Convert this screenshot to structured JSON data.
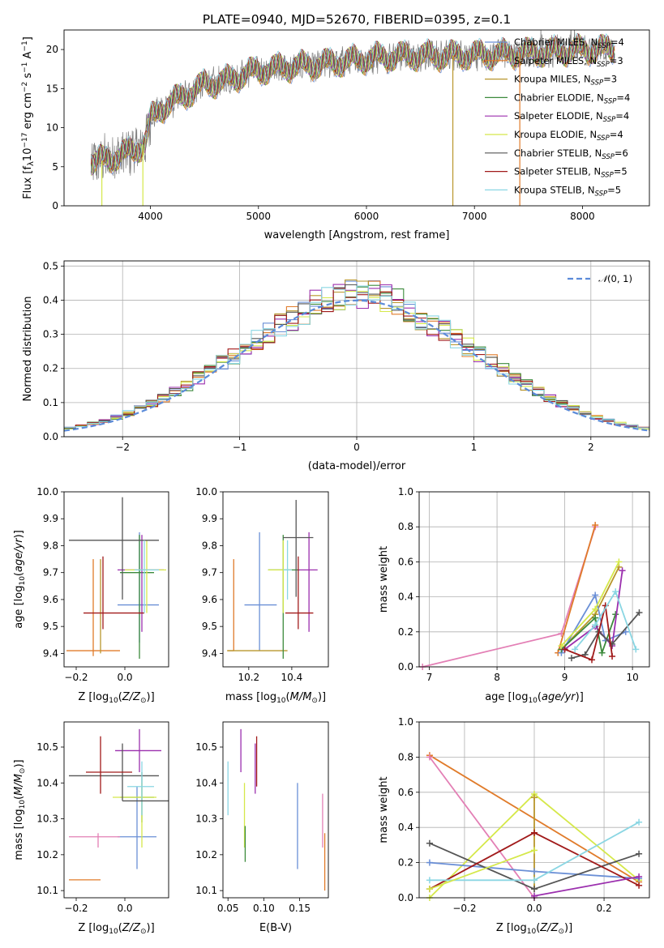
{
  "figure": {
    "title": "PLATE=0940, MJD=52670, FIBERID=0395, z=0.1"
  },
  "colors": {
    "Chabrier MILES": "#6a8fd6",
    "Salpeter MILES": "#e07b2a",
    "Kroupa MILES": "#b8962c",
    "Chabrier ELODIE": "#3c8a3c",
    "Salpeter ELODIE": "#9b2fae",
    "Kroupa ELODIE": "#d5e84a",
    "Chabrier STELIB": "#555555",
    "Salpeter STELIB": "#a11a1a",
    "Kroupa STELIB": "#8ad6e3",
    "pink": "#e37fb5",
    "gauss": "#5b8bd9",
    "spectrum": "#7f7f7f"
  },
  "chart_data": [
    {
      "id": "spectrum",
      "type": "line",
      "xlabel": "wavelength [Angstrom, rest frame]",
      "ylabel": "Flux [f_λ 10^-17 erg cm^-2 s^-1 A^-1]",
      "xlim": [
        3200,
        8620
      ],
      "ylim": [
        0,
        22.5
      ],
      "xticks": [
        4000,
        5000,
        6000,
        7000,
        8000
      ],
      "yticks": [
        0,
        5,
        10,
        15,
        20
      ],
      "legend_position": "upper right",
      "legend": [
        {
          "name": "Chabrier MILES",
          "n_ssp": "4"
        },
        {
          "name": "Salpeter MILES",
          "n_ssp": "3"
        },
        {
          "name": "Kroupa MILES",
          "n_ssp": "3"
        },
        {
          "name": "Chabrier ELODIE",
          "n_ssp": "4"
        },
        {
          "name": "Salpeter ELODIE",
          "n_ssp": "4"
        },
        {
          "name": "Kroupa ELODIE",
          "n_ssp": "4"
        },
        {
          "name": "Chabrier STELIB",
          "n_ssp": "6"
        },
        {
          "name": "Salpeter STELIB",
          "n_ssp": "5"
        },
        {
          "name": "Kroupa STELIB",
          "n_ssp": "5"
        }
      ],
      "continuum_anchors": {
        "x": [
          3450,
          3550,
          3650,
          3800,
          3950,
          4000,
          4100,
          4300,
          4500,
          4700,
          4900,
          5100,
          5300,
          5500,
          5800,
          6100,
          6400,
          6700,
          7000,
          7300,
          7500,
          7700,
          7900,
          8100,
          8300
        ],
        "y": [
          5.5,
          5.8,
          6.2,
          6.8,
          8.0,
          11.0,
          12.5,
          14.0,
          15.5,
          16.0,
          17.0,
          17.5,
          17.8,
          18.0,
          18.5,
          19.0,
          19.2,
          19.2,
          19.3,
          19.4,
          19.6,
          19.7,
          19.9,
          20.0,
          20.0
        ]
      },
      "spikes_down": [
        {
          "x": 3930,
          "y": 0
        },
        {
          "x": 3550,
          "y": 0
        },
        {
          "x": 6800,
          "y": 0
        },
        {
          "x": 7420,
          "y": 0
        }
      ]
    },
    {
      "id": "residuals",
      "type": "histogram",
      "xlabel": "(data-model)/error",
      "ylabel": "Normed distribution",
      "xlim": [
        -2.5,
        2.5
      ],
      "ylim": [
        0,
        0.515
      ],
      "xticks": [
        -2,
        -1,
        0,
        1,
        2
      ],
      "yticks": [
        0.0,
        0.1,
        0.2,
        0.3,
        0.4,
        0.5
      ],
      "grid": true,
      "reference": {
        "label": "N(0,1)",
        "mu": 0,
        "sigma": 1
      },
      "bin_edges_from": -2.5,
      "bin_width": 0.1
    },
    {
      "id": "age_vs_Z",
      "type": "errorbar",
      "xlabel": "Z [log10(Z/Z_sun)]",
      "ylabel": "age [log10(age/yr)]",
      "xlim": [
        -0.25,
        0.18
      ],
      "ylim": [
        9.35,
        10.0
      ],
      "xticks": [
        -0.2,
        0.0
      ],
      "yticks": [
        9.4,
        9.5,
        9.6,
        9.7,
        9.8,
        9.9,
        10.0
      ],
      "points": [
        {
          "series": "Chabrier MILES",
          "x": 0.06,
          "y": 9.58,
          "xlo": -0.03,
          "xhi": 0.14,
          "ylo": 9.44,
          "yhi": 9.85
        },
        {
          "series": "Salpeter MILES",
          "x": -0.13,
          "y": 9.41,
          "xlo": -0.24,
          "xhi": -0.02,
          "ylo": 9.39,
          "yhi": 9.75
        },
        {
          "series": "Kroupa MILES",
          "x": -0.1,
          "y": 9.55,
          "xlo": -0.1,
          "xhi": -0.1,
          "ylo": 9.4,
          "yhi": 9.75
        },
        {
          "series": "Chabrier ELODIE",
          "x": 0.06,
          "y": 9.7,
          "xlo": -0.02,
          "xhi": 0.12,
          "ylo": 9.38,
          "yhi": 9.84
        },
        {
          "series": "Salpeter ELODIE",
          "x": 0.07,
          "y": 9.71,
          "xlo": -0.03,
          "xhi": 0.16,
          "ylo": 9.48,
          "yhi": 9.84
        },
        {
          "series": "Kroupa ELODIE",
          "x": 0.09,
          "y": 9.71,
          "xlo": 0.0,
          "xhi": 0.17,
          "ylo": 9.55,
          "yhi": 9.82
        },
        {
          "series": "Chabrier STELIB",
          "x": -0.01,
          "y": 9.82,
          "xlo": -0.23,
          "xhi": 0.14,
          "ylo": 9.6,
          "yhi": 9.98
        },
        {
          "series": "Salpeter STELIB",
          "x": -0.09,
          "y": 9.55,
          "xlo": -0.17,
          "xhi": 0.08,
          "ylo": 9.49,
          "yhi": 9.76
        },
        {
          "series": "Kroupa STELIB",
          "x": 0.08,
          "y": 9.71,
          "xlo": 0.04,
          "xhi": 0.14,
          "ylo": 9.55,
          "yhi": 9.82
        }
      ]
    },
    {
      "id": "age_vs_mass",
      "type": "errorbar",
      "xlabel": "mass [log10(M/M_sun)]",
      "xlim": [
        10.08,
        10.57
      ],
      "ylim": [
        9.35,
        10.0
      ],
      "xticks": [
        10.2,
        10.4
      ],
      "yticks": [
        9.4,
        9.5,
        9.6,
        9.7,
        9.8,
        9.9,
        10.0
      ],
      "points": [
        {
          "series": "Chabrier MILES",
          "x": 10.25,
          "y": 9.58,
          "xlo": 10.18,
          "xhi": 10.33,
          "ylo": 9.41,
          "yhi": 9.85
        },
        {
          "series": "Salpeter MILES",
          "x": 10.13,
          "y": 9.41,
          "xlo": 10.1,
          "xhi": 10.13,
          "ylo": 9.41,
          "yhi": 9.75
        },
        {
          "series": "Kroupa MILES",
          "x": 10.25,
          "y": 9.41,
          "xlo": 10.1,
          "xhi": 10.38,
          "ylo": 9.41,
          "yhi": 9.41
        },
        {
          "series": "Chabrier ELODIE",
          "x": 10.36,
          "y": 9.71,
          "xlo": 10.29,
          "xhi": 10.43,
          "ylo": 9.38,
          "yhi": 9.84
        },
        {
          "series": "Salpeter ELODIE",
          "x": 10.48,
          "y": 9.71,
          "xlo": 10.43,
          "xhi": 10.52,
          "ylo": 9.48,
          "yhi": 9.85
        },
        {
          "series": "Kroupa ELODIE",
          "x": 10.36,
          "y": 9.71,
          "xlo": 10.29,
          "xhi": 10.4,
          "ylo": 9.55,
          "yhi": 9.82
        },
        {
          "series": "Chabrier STELIB",
          "x": 10.42,
          "y": 9.83,
          "xlo": 10.36,
          "xhi": 10.5,
          "ylo": 9.61,
          "yhi": 9.97
        },
        {
          "series": "Salpeter STELIB",
          "x": 10.43,
          "y": 9.55,
          "xlo": 10.37,
          "xhi": 10.5,
          "ylo": 9.49,
          "yhi": 9.76
        },
        {
          "series": "Kroupa STELIB",
          "x": 10.38,
          "y": 9.71,
          "xlo": 10.36,
          "xhi": 10.4,
          "ylo": 9.6,
          "yhi": 9.82
        }
      ]
    },
    {
      "id": "weight_vs_age",
      "type": "line",
      "xlabel": "age [log10(age/yr)]",
      "ylabel": "mass weight",
      "xlim": [
        6.85,
        10.25
      ],
      "ylim": [
        0.0,
        1.0
      ],
      "xticks": [
        7,
        8,
        9,
        10
      ],
      "yticks": [
        0.0,
        0.2,
        0.4,
        0.6,
        0.8,
        1.0
      ],
      "grid": true,
      "series": [
        {
          "name": "pink",
          "x": [
            6.9,
            8.95,
            9.45
          ],
          "y": [
            0.0,
            0.19,
            0.8
          ]
        },
        {
          "name": "Salpeter MILES",
          "x": [
            8.9,
            9.45
          ],
          "y": [
            0.08,
            0.81
          ]
        },
        {
          "name": "Kroupa MILES",
          "x": [
            8.95,
            9.45,
            9.8
          ],
          "y": [
            0.1,
            0.3,
            0.57
          ]
        },
        {
          "name": "Chabrier MILES",
          "x": [
            8.95,
            9.45,
            9.6,
            9.9
          ],
          "y": [
            0.08,
            0.41,
            0.15,
            0.2
          ]
        },
        {
          "name": "Chabrier ELODIE",
          "x": [
            8.95,
            9.45,
            9.55,
            9.75
          ],
          "y": [
            0.1,
            0.28,
            0.08,
            0.3
          ]
        },
        {
          "name": "Salpeter ELODIE",
          "x": [
            9.0,
            9.45,
            9.7,
            9.85
          ],
          "y": [
            0.1,
            0.23,
            0.12,
            0.55
          ]
        },
        {
          "name": "Kroupa ELODIE",
          "x": [
            8.95,
            9.45,
            9.8
          ],
          "y": [
            0.12,
            0.33,
            0.6
          ]
        },
        {
          "name": "Chabrier STELIB",
          "x": [
            9.1,
            9.3,
            9.5,
            9.7,
            10.1
          ],
          "y": [
            0.05,
            0.07,
            0.2,
            0.13,
            0.31
          ]
        },
        {
          "name": "Salpeter STELIB",
          "x": [
            9.0,
            9.4,
            9.6,
            9.7
          ],
          "y": [
            0.1,
            0.04,
            0.35,
            0.06
          ]
        },
        {
          "name": "Kroupa STELIB",
          "x": [
            9.15,
            9.45,
            9.75,
            10.05
          ],
          "y": [
            0.1,
            0.24,
            0.43,
            0.1
          ]
        }
      ]
    },
    {
      "id": "mass_vs_Z",
      "type": "errorbar",
      "xlabel": "Z [log10(Z/Z_sun)]",
      "ylabel": "mass [log10(M/M_sun)]",
      "xlim": [
        -0.25,
        0.18
      ],
      "ylim": [
        10.08,
        10.57
      ],
      "xticks": [
        -0.2,
        0.0
      ],
      "yticks": [
        10.1,
        10.2,
        10.3,
        10.4,
        10.5
      ],
      "points": [
        {
          "series": "Chabrier MILES",
          "x": 0.05,
          "y": 10.25,
          "xlo": -0.03,
          "xhi": 0.13,
          "ylo": 10.16,
          "yhi": 10.39
        },
        {
          "series": "Salpeter MILES",
          "x": -0.16,
          "y": 10.13,
          "xlo": -0.23,
          "xhi": -0.1,
          "ylo": 10.13,
          "yhi": 10.13
        },
        {
          "series": "pink",
          "x": -0.11,
          "y": 10.25,
          "xlo": -0.23,
          "xhi": -0.02,
          "ylo": 10.22,
          "yhi": 10.26
        },
        {
          "series": "Chabrier ELODIE",
          "x": 0.07,
          "y": 10.36,
          "xlo": -0.02,
          "xhi": 0.12,
          "ylo": 10.29,
          "yhi": 10.43
        },
        {
          "series": "Salpeter ELODIE",
          "x": 0.06,
          "y": 10.49,
          "xlo": -0.04,
          "xhi": 0.15,
          "ylo": 10.43,
          "yhi": 10.55
        },
        {
          "series": "Kroupa ELODIE",
          "x": 0.07,
          "y": 10.36,
          "xlo": -0.05,
          "xhi": 0.13,
          "ylo": 10.22,
          "yhi": 10.4
        },
        {
          "series": "Chabrier STELIB",
          "x": -0.01,
          "y": 10.42,
          "xlo": -0.23,
          "xhi": 0.14,
          "ylo": 10.35,
          "yhi": 10.51
        },
        {
          "series": "Salpeter STELIB",
          "x": -0.1,
          "y": 10.43,
          "xlo": -0.16,
          "xhi": 0.03,
          "ylo": 10.37,
          "yhi": 10.53
        },
        {
          "series": "Kroupa STELIB",
          "x": 0.07,
          "y": 10.39,
          "xlo": 0.01,
          "xhi": 0.12,
          "ylo": 10.31,
          "yhi": 10.46
        },
        {
          "series": "Chabrier STELIB",
          "x": 0.05,
          "y": 10.35,
          "xlo": -0.01,
          "xhi": 0.18,
          "ylo": 10.35,
          "yhi": 10.35
        }
      ]
    },
    {
      "id": "mass_vs_EBV",
      "type": "errorbar",
      "xlabel": "E(B-V)",
      "xlim": [
        0.043,
        0.19
      ],
      "ylim": [
        10.08,
        10.57
      ],
      "xticks": [
        0.05,
        0.1,
        0.15
      ],
      "yticks": [
        10.1,
        10.2,
        10.3,
        10.4,
        10.5
      ],
      "points": [
        {
          "series": "Kroupa STELIB",
          "x": 0.05,
          "y": 10.39,
          "xlo": 0.05,
          "xhi": 0.05,
          "ylo": 10.31,
          "yhi": 10.46
        },
        {
          "series": "Salpeter ELODIE",
          "x": 0.068,
          "y": 10.49,
          "xlo": 0.068,
          "xhi": 0.068,
          "ylo": 10.43,
          "yhi": 10.55
        },
        {
          "series": "Kroupa ELODIE",
          "x": 0.073,
          "y": 10.36,
          "xlo": 0.073,
          "xhi": 0.073,
          "ylo": 10.22,
          "yhi": 10.4
        },
        {
          "series": "Chabrier ELODIE",
          "x": 0.074,
          "y": 10.25,
          "xlo": 0.074,
          "xhi": 0.074,
          "ylo": 10.18,
          "yhi": 10.28
        },
        {
          "series": "Salpeter ELODIE",
          "x": 0.088,
          "y": 10.45,
          "xlo": 0.088,
          "xhi": 0.088,
          "ylo": 10.37,
          "yhi": 10.51
        },
        {
          "series": "Salpeter STELIB",
          "x": 0.09,
          "y": 10.45,
          "xlo": 0.09,
          "xhi": 0.09,
          "ylo": 10.39,
          "yhi": 10.53
        },
        {
          "series": "Chabrier MILES",
          "x": 0.147,
          "y": 10.3,
          "xlo": 0.147,
          "xhi": 0.147,
          "ylo": 10.16,
          "yhi": 10.4
        },
        {
          "series": "pink",
          "x": 0.182,
          "y": 10.3,
          "xlo": 0.182,
          "xhi": 0.182,
          "ylo": 10.22,
          "yhi": 10.37
        },
        {
          "series": "Salpeter MILES",
          "x": 0.185,
          "y": 10.18,
          "xlo": 0.185,
          "xhi": 0.185,
          "ylo": 10.1,
          "yhi": 10.26
        }
      ]
    },
    {
      "id": "weight_vs_Z",
      "type": "line",
      "xlabel": "Z [log10(Z/Z_sun)]",
      "ylabel": "mass weight",
      "xlim": [
        -0.33,
        0.33
      ],
      "ylim": [
        0.0,
        1.0
      ],
      "xticks": [
        -0.2,
        0.0,
        0.2
      ],
      "yticks": [
        0.0,
        0.2,
        0.4,
        0.6,
        0.8,
        1.0
      ],
      "grid": true,
      "series": [
        {
          "name": "Salpeter MILES",
          "x": [
            -0.3,
            0.3
          ],
          "y": [
            0.81,
            0.09
          ]
        },
        {
          "name": "pink",
          "x": [
            -0.3,
            0.0
          ],
          "y": [
            0.8,
            0.0
          ]
        },
        {
          "name": "Kroupa ELODIE",
          "x": [
            -0.3,
            0.0,
            0.3
          ],
          "y": [
            0.0,
            0.59,
            0.1
          ]
        },
        {
          "name": "Kroupa MILES",
          "x": [
            0.0,
            0.0
          ],
          "y": [
            0.05,
            0.57
          ]
        },
        {
          "name": "Chabrier MILES",
          "x": [
            -0.3,
            0.0,
            0.3
          ],
          "y": [
            0.2,
            0.15,
            0.11
          ]
        },
        {
          "name": "Chabrier STELIB",
          "x": [
            -0.3,
            0.0,
            0.3
          ],
          "y": [
            0.31,
            0.05,
            0.25
          ]
        },
        {
          "name": "Salpeter STELIB",
          "x": [
            -0.3,
            0.0,
            0.3
          ],
          "y": [
            0.05,
            0.37,
            0.07
          ]
        },
        {
          "name": "Salpeter ELODIE",
          "x": [
            0.0,
            0.3
          ],
          "y": [
            0.01,
            0.12
          ]
        },
        {
          "name": "Kroupa STELIB",
          "x": [
            -0.3,
            0.0,
            0.3
          ],
          "y": [
            0.1,
            0.1,
            0.43
          ]
        },
        {
          "name": "Kroupa ELODIE",
          "x": [
            -0.3,
            0.0
          ],
          "y": [
            0.05,
            0.27
          ]
        }
      ]
    }
  ]
}
